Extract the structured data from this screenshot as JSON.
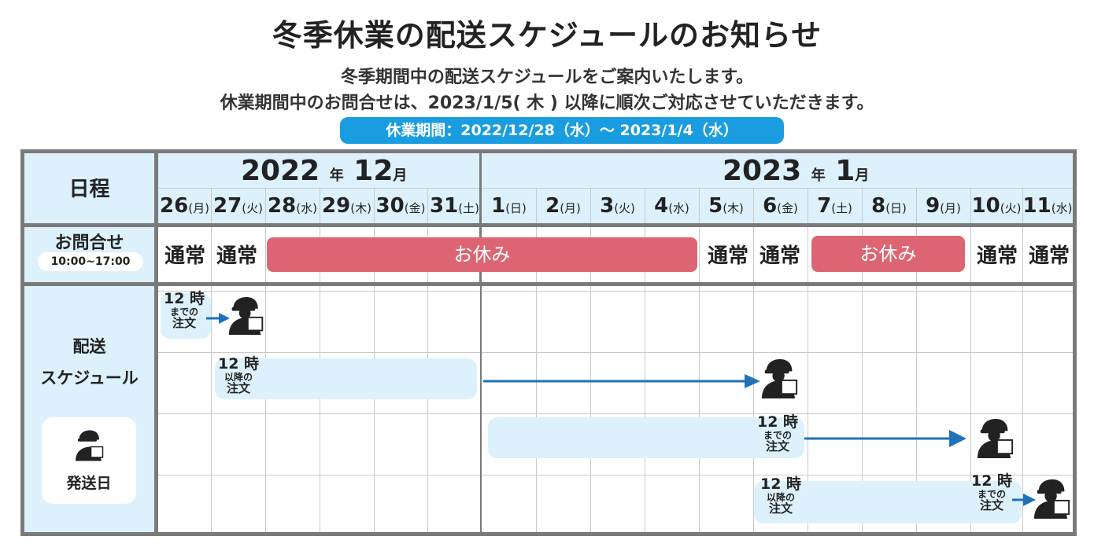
{
  "header": {
    "title": "冬季休業の配送スケジュールのお知らせ",
    "line1": "冬季期間中の配送スケジュールをご案内いたします。",
    "line2": "休業期間中のお問合せは、2023/1/5( 木 ) 以降に順次ご対応させていただきます。",
    "period": "休業期間：2022/12/28（水）～ 2023/1/4（水）"
  },
  "table": {
    "schedule_label": "日程",
    "dec_year": "2022",
    "dec_month": "12",
    "jan_year": "2023",
    "jan_month": "1",
    "year_unit": "年",
    "month_unit": "月",
    "days": [
      {
        "n": "26",
        "w": "(月)"
      },
      {
        "n": "27",
        "w": "(火)"
      },
      {
        "n": "28",
        "w": "(水)"
      },
      {
        "n": "29",
        "w": "(木)"
      },
      {
        "n": "30",
        "w": "(金)"
      },
      {
        "n": "31",
        "w": "(土)"
      },
      {
        "n": "1",
        "w": "(日)"
      },
      {
        "n": "2",
        "w": "(月)"
      },
      {
        "n": "3",
        "w": "(火)"
      },
      {
        "n": "4",
        "w": "(水)"
      },
      {
        "n": "5",
        "w": "(木)"
      },
      {
        "n": "6",
        "w": "(金)"
      },
      {
        "n": "7",
        "w": "(土)"
      },
      {
        "n": "8",
        "w": "(日)"
      },
      {
        "n": "9",
        "w": "(月)"
      },
      {
        "n": "10",
        "w": "(火)"
      },
      {
        "n": "11",
        "w": "(水)"
      }
    ],
    "inquiry_label": "お問合せ",
    "inquiry_hours": "10:00~17:00",
    "normal": "通常",
    "holiday": "お休み",
    "delivery_label_1": "配送",
    "delivery_label_2": "スケジュール",
    "legend_label": "発送日",
    "note_num": "12 時",
    "note_before": "までの",
    "note_after": "以降の",
    "note_order": "注文"
  },
  "colors": {
    "accent_blue": "#1a9de0",
    "light_blue": "#dcf1fc",
    "holiday_red": "#dd6573",
    "arrow_blue": "#1f72b8",
    "frame_gray": "#7a7a7a"
  }
}
